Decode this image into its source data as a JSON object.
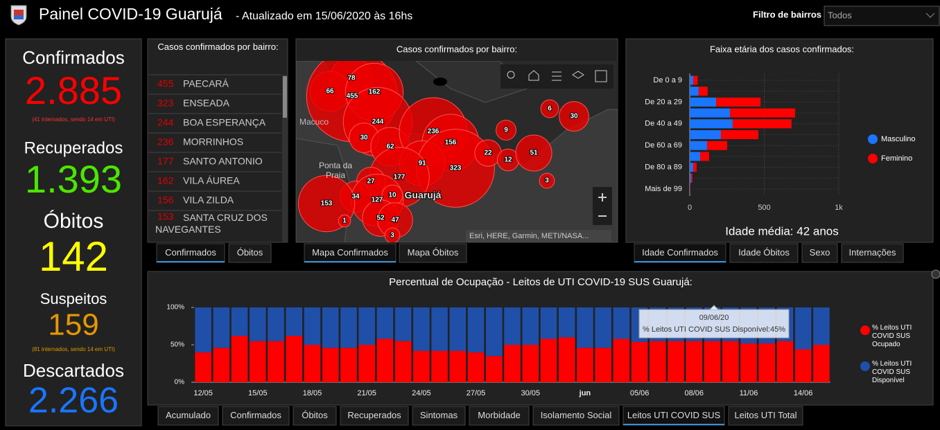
{
  "header": {
    "title": "Painel COVID-19 Guarujá",
    "subtitle": "- Atualizado em 15/06/2020 às 16hs",
    "filter_label": "Filtro de bairros",
    "filter_value": "Todos"
  },
  "summary": {
    "confirmed_label": "Confirmados",
    "confirmed_value": "2.885",
    "confirmed_note": "(41 internados, sendo 14 em UTI)",
    "recovered_label": "Recuperados",
    "recovered_value": "1.393",
    "deaths_label": "Óbitos",
    "deaths_value": "142",
    "suspected_label": "Suspeitos",
    "suspected_value": "159",
    "suspected_note": "(81 internados, sendo 14 em UTI)",
    "discarded_label": "Descartados",
    "discarded_value": "2.266"
  },
  "neighborhood_list": {
    "title": "Casos confirmados por bairro:",
    "rows": [
      {
        "count": 455,
        "name": "PAECARÁ"
      },
      {
        "count": 323,
        "name": "ENSEADA"
      },
      {
        "count": 244,
        "name": "BOA ESPERANÇA"
      },
      {
        "count": 236,
        "name": "MORRINHOS"
      },
      {
        "count": 177,
        "name": "SANTO ANTONIO"
      },
      {
        "count": 162,
        "name": "VILA ÁUREA"
      },
      {
        "count": 156,
        "name": "VILA ZILDA"
      },
      {
        "count": 153,
        "name": "SANTA CRUZ DOS NAVEGANTES"
      }
    ],
    "tabs": [
      "Confirmados",
      "Óbitos"
    ]
  },
  "map": {
    "title": "Casos confirmados por bairro:",
    "places": [
      "Macuco",
      "Ponta da Praia",
      "Guarujá"
    ],
    "bubbles": [
      78,
      66,
      455,
      162,
      244,
      30,
      62,
      236,
      156,
      91,
      323,
      22,
      12,
      51,
      9,
      6,
      30,
      3,
      177,
      27,
      34,
      127,
      10,
      153,
      1,
      52,
      47,
      3
    ],
    "attribution": "Esri, HERE, Garmin, METI/NASA...",
    "tabs": [
      "Mapa Confirmados",
      "Mapa Óbitos"
    ]
  },
  "age_chart": {
    "type": "bar",
    "orientation": "horizontal",
    "stacked": true,
    "title": "Faixa etária dos casos confirmados:",
    "categories": [
      "De 0 a 9",
      null,
      "De 20 a 29",
      null,
      "De 40 a 49",
      null,
      "De 60 a 69",
      null,
      "De 80 a 89",
      null,
      "Mais de 99"
    ],
    "series": [
      {
        "name": "Masculino",
        "color": "#1a75ff",
        "values": [
          23,
          60,
          177,
          270,
          288,
          209,
          116,
          70,
          23,
          9,
          2
        ]
      },
      {
        "name": "Feminino",
        "color": "#ff0000",
        "values": [
          30,
          60,
          298,
          437,
          395,
          251,
          135,
          60,
          23,
          9,
          2
        ]
      }
    ],
    "xlim": [
      0,
      1000
    ],
    "xticks": [
      0,
      500,
      {
        "value": 1000,
        "label": "1k"
      }
    ],
    "grid": true,
    "legend": "right",
    "note": "Idade média: 42 anos",
    "tabs": [
      "Idade Confirmados",
      "Idade Óbitos",
      "Sexo",
      "Internações"
    ]
  },
  "uti_chart": {
    "type": "bar",
    "stacked": true,
    "title": "Percentual de Ocupação - Leitos de UTI COVID-19 SUS Guarujá:",
    "categories": [
      "12/05",
      null,
      null,
      "15/05",
      null,
      null,
      "18/05",
      null,
      null,
      "21/05",
      null,
      null,
      "24/05",
      null,
      null,
      "27/05",
      null,
      null,
      "30/05",
      null,
      null,
      "jun",
      null,
      null,
      "05/06",
      null,
      null,
      "08/06",
      null,
      null,
      "11/06",
      null,
      null,
      "14/06",
      null
    ],
    "series": [
      {
        "name": "% Leitos UTI COVID SUS Ocupado",
        "color": "#ff0000",
        "values": [
          40,
          46,
          62,
          55,
          55,
          62,
          50,
          46,
          46,
          50,
          58,
          55,
          42,
          42,
          42,
          40,
          35,
          50,
          50,
          58,
          60,
          46,
          46,
          58,
          54,
          55,
          55,
          55,
          55,
          55,
          52,
          52,
          55,
          44,
          50
        ]
      },
      {
        "name": "% Leitos UTI COVID SUS Disponível",
        "color": "#1f4fa8",
        "values": [
          60,
          54,
          38,
          45,
          45,
          38,
          50,
          54,
          54,
          50,
          42,
          45,
          58,
          58,
          58,
          60,
          65,
          50,
          50,
          42,
          40,
          54,
          54,
          42,
          46,
          45,
          45,
          45,
          45,
          45,
          48,
          48,
          45,
          56,
          50
        ]
      }
    ],
    "ylim": [
      0,
      100
    ],
    "yticks": [
      {
        "value": 0,
        "label": "0%"
      },
      {
        "value": 50,
        "label": "50%"
      },
      {
        "value": 100,
        "label": "100%"
      }
    ],
    "legend": "right",
    "tooltip": {
      "title": "09/06/20",
      "text": "% Leitos UTI COVID SUS Disponível:45%"
    },
    "tabs": [
      "Acumulado",
      "Confirmados",
      "Óbitos",
      "Recuperados",
      "Sintomas",
      "Morbidade",
      "Isolamento Social",
      "Leitos UTI COVID SUS",
      "Leitos UTI Total"
    ]
  }
}
